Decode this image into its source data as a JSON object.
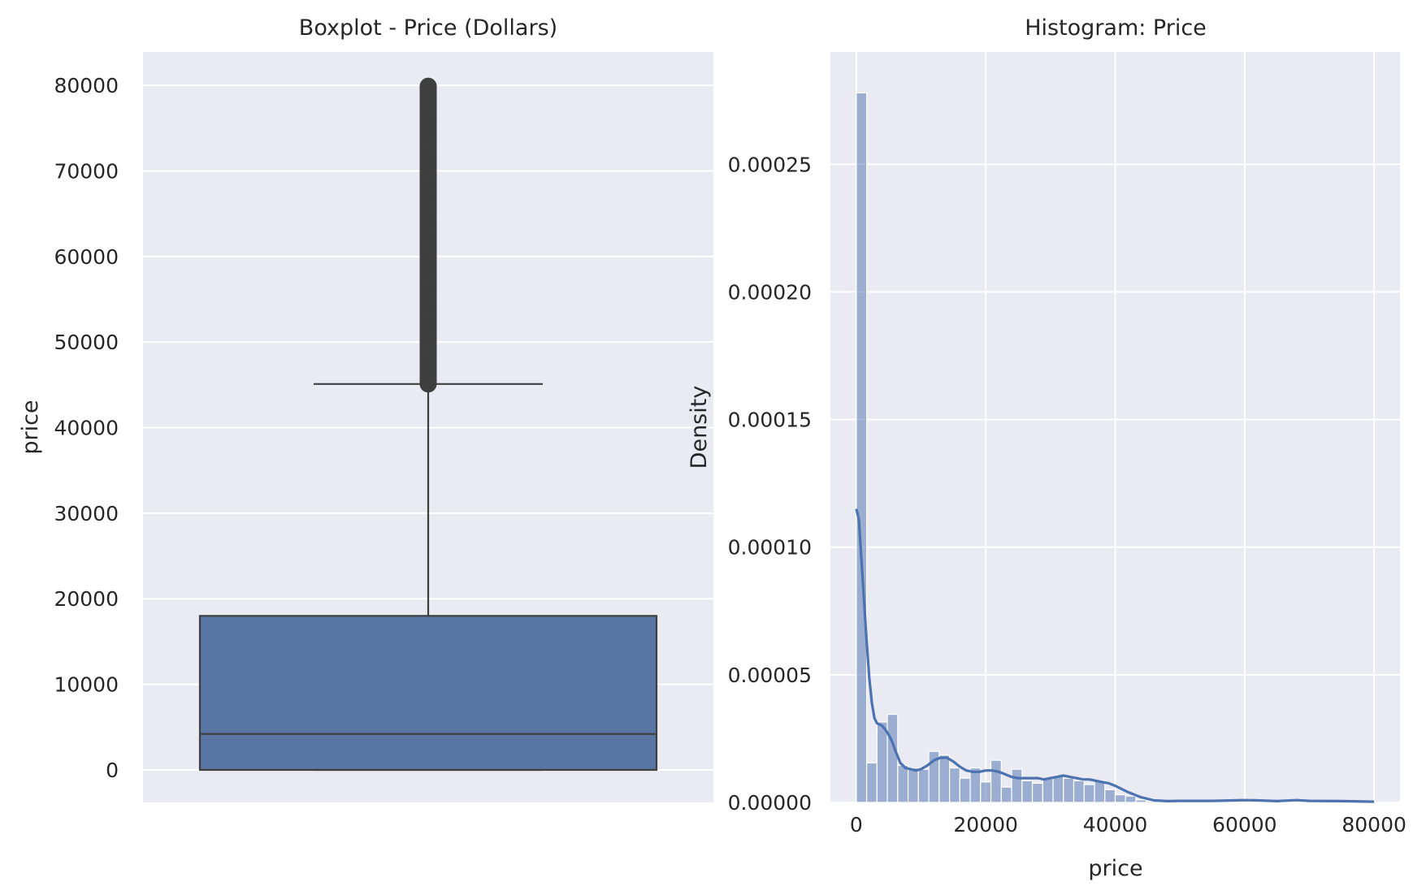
{
  "chart_data": [
    {
      "type": "box",
      "title": "Boxplot - Price (Dollars)",
      "xlabel": "",
      "ylabel": "price",
      "ylim": [
        -3800,
        83900
      ],
      "yticks": [
        0,
        10000,
        20000,
        30000,
        40000,
        50000,
        60000,
        70000,
        80000
      ],
      "grid": true,
      "box": {
        "q1": 0,
        "median": 4200,
        "q3": 18000,
        "whisker_low": 0,
        "whisker_high": 45100,
        "outliers_min": 45100,
        "outliers_max": 79900
      },
      "color": "#5975a4"
    },
    {
      "type": "histogram",
      "title": "Histogram: Price",
      "xlabel": "price",
      "ylabel": "Density",
      "xlim": [
        -4000,
        84000
      ],
      "ylim": [
        0,
        0.000294
      ],
      "xticks": [
        0,
        20000,
        40000,
        60000,
        80000
      ],
      "yticks": [
        0.0,
        5e-05,
        0.0001,
        0.00015,
        0.0002,
        0.00025
      ],
      "ytick_labels": [
        "0.00000",
        "0.00005",
        "0.00010",
        "0.00015",
        "0.00020",
        "0.00025"
      ],
      "grid": true,
      "bin_width": 1600,
      "bin_start": 0,
      "densities": [
        0.000278,
        1.55e-05,
        3.15e-05,
        3.45e-05,
        1.45e-05,
        1.35e-05,
        1.3e-05,
        2e-05,
        1.85e-05,
        1.35e-05,
        9.5e-06,
        1.35e-05,
        8e-06,
        1.65e-05,
        6e-06,
        1.3e-05,
        8.5e-06,
        7.5e-06,
        9.5e-06,
        1.05e-05,
        9.5e-06,
        8.5e-06,
        7e-06,
        8.5e-06,
        5e-06,
        3e-06,
        2.5e-06,
        1e-06,
        5e-07,
        4e-07,
        4e-07,
        4e-07,
        4e-07,
        4e-07,
        4e-07,
        4e-07,
        4e-07,
        4e-07,
        4e-07,
        4e-07,
        4e-07,
        4e-07,
        4e-07,
        4e-07,
        4e-07,
        4e-07,
        4e-07,
        4e-07,
        4e-07,
        4e-07
      ],
      "kde": {
        "x": [
          0,
          400,
          800,
          1200,
          1600,
          2000,
          2400,
          2800,
          3200,
          3600,
          4000,
          4500,
          5000,
          5500,
          6000,
          6800,
          7600,
          8400,
          9200,
          10000,
          11000,
          12000,
          13000,
          14000,
          15000,
          16000,
          17000,
          18000,
          19000,
          20000,
          21000,
          22000,
          23000,
          24000,
          25000,
          26000,
          27000,
          28000,
          29000,
          30000,
          31000,
          32000,
          33000,
          34000,
          35000,
          36000,
          37000,
          38000,
          39000,
          40000,
          42000,
          44000,
          46000,
          48000,
          50000,
          55000,
          60000,
          62000,
          65000,
          68000,
          70000,
          75000,
          80000
        ],
        "y": [
          0.000115,
          0.000111,
          9.5e-05,
          7.9e-05,
          6.3e-05,
          4.9e-05,
          3.9e-05,
          3.3e-05,
          3.1e-05,
          3.05e-05,
          3e-05,
          2.85e-05,
          2.65e-05,
          2.4e-05,
          2.05e-05,
          1.55e-05,
          1.35e-05,
          1.3e-05,
          1.25e-05,
          1.3e-05,
          1.45e-05,
          1.65e-05,
          1.75e-05,
          1.75e-05,
          1.6e-05,
          1.4e-05,
          1.25e-05,
          1.2e-05,
          1.2e-05,
          1.25e-05,
          1.25e-05,
          1.2e-05,
          1.1e-05,
          1e-05,
          9.5e-06,
          9.5e-06,
          9.5e-06,
          9.5e-06,
          9e-06,
          9.5e-06,
          1e-05,
          1.05e-05,
          1e-05,
          9.5e-06,
          9e-06,
          9e-06,
          8.5e-06,
          8e-06,
          7.5e-06,
          6.5e-06,
          4e-06,
          2e-06,
          8e-07,
          5e-07,
          6e-07,
          6e-07,
          9e-07,
          8e-07,
          5e-07,
          9e-07,
          6e-07,
          5e-07,
          3e-07
        ]
      },
      "color": "#4c72b0"
    }
  ]
}
